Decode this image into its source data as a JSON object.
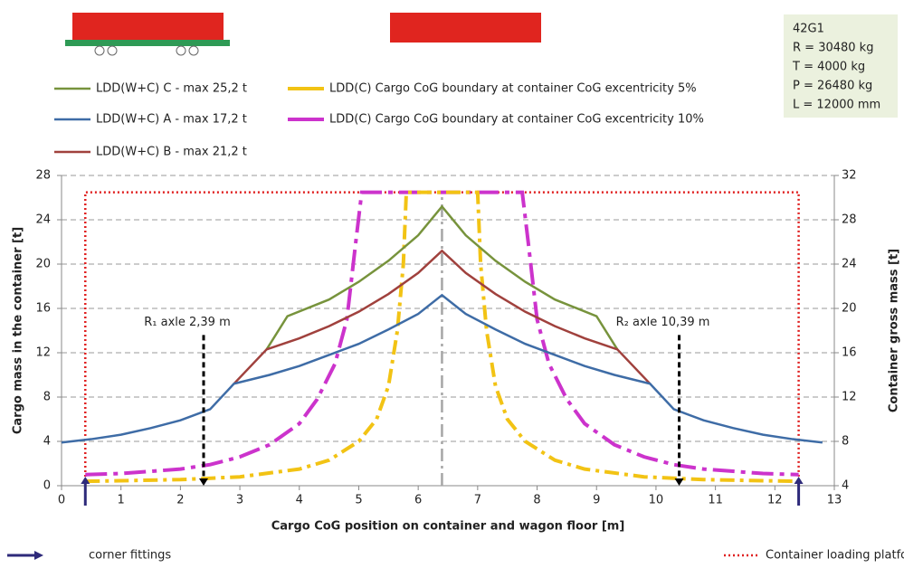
{
  "chart_data": {
    "type": "line",
    "xlabel": "Cargo CoG position on container and wagon floor [m]",
    "ylabel": "Cargo mass in the container  [t]",
    "y2label": "Container gross mass [t]",
    "xlim": [
      0,
      13
    ],
    "xticks": [
      0,
      1,
      2,
      3,
      4,
      5,
      6,
      7,
      8,
      9,
      10,
      11,
      12,
      13
    ],
    "ylim": [
      0,
      28
    ],
    "yticks": [
      0,
      4,
      8,
      12,
      16,
      20,
      24,
      28
    ],
    "y2lim": [
      4,
      32
    ],
    "y2ticks": [
      4,
      8,
      12,
      16,
      20,
      24,
      28,
      32
    ],
    "grid": true,
    "series": [
      {
        "name": "LDD(W+C) C - max 25,2 t",
        "color": "#77933c",
        "style": "solid",
        "x": [
          3.45,
          3.8,
          4.5,
          5,
          5.5,
          6,
          6.4,
          6.8,
          7.3,
          7.8,
          8.3,
          9,
          9.35
        ],
        "values": [
          12.3,
          15.3,
          16.8,
          18.4,
          20.3,
          22.6,
          25.2,
          22.6,
          20.3,
          18.4,
          16.8,
          15.3,
          12.3
        ]
      },
      {
        "name": "LDD(W+C) A - max 17,2 t",
        "color": "#3e6ca6",
        "style": "solid",
        "x": [
          0,
          0.5,
          1,
          1.5,
          2,
          2.5,
          2.9,
          3.5,
          4,
          4.5,
          5,
          5.5,
          6,
          6.4,
          6.8,
          7.3,
          7.8,
          8.3,
          8.8,
          9.3,
          9.9,
          10.3,
          10.8,
          11.3,
          11.8,
          12.3,
          12.8
        ],
        "values": [
          3.9,
          4.2,
          4.6,
          5.2,
          5.9,
          6.9,
          9.2,
          10,
          10.8,
          11.8,
          12.8,
          14.1,
          15.5,
          17.2,
          15.5,
          14.1,
          12.8,
          11.8,
          10.8,
          10,
          9.2,
          6.9,
          5.9,
          5.2,
          4.6,
          4.2,
          3.9
        ]
      },
      {
        "name": "LDD(W+C) B - max 21,2 t",
        "color": "#a0413d",
        "style": "solid",
        "x": [
          2.9,
          3.45,
          4,
          4.5,
          5,
          5.5,
          6,
          6.4,
          6.8,
          7.3,
          7.8,
          8.3,
          8.8,
          9.35,
          9.9
        ],
        "values": [
          9.2,
          12.3,
          13.3,
          14.4,
          15.7,
          17.3,
          19.2,
          21.2,
          19.2,
          17.3,
          15.7,
          14.4,
          13.3,
          12.3,
          9.2
        ]
      },
      {
        "name": "LDD(C) Cargo CoG boundary at container CoG excentricity 5%",
        "color": "#f2c314",
        "style": "dashdot",
        "x": [
          0.4,
          1,
          2,
          3,
          4,
          4.5,
          5,
          5.3,
          5.5,
          5.65,
          5.75,
          5.8,
          7,
          7.05,
          7.15,
          7.3,
          7.5,
          7.8,
          8.3,
          8.8,
          9.8,
          10.8,
          11.8,
          12.4
        ],
        "values": [
          0.4,
          0.45,
          0.55,
          0.8,
          1.5,
          2.3,
          4,
          6,
          9,
          14,
          20,
          26.48,
          26.48,
          20,
          14,
          9,
          6,
          4,
          2.3,
          1.5,
          0.8,
          0.55,
          0.45,
          0.4
        ]
      },
      {
        "name": "LDD(C) Cargo CoG boundary at container CoG excentricity 10%",
        "color": "#cc33cc",
        "style": "longdashdot",
        "x": [
          0.4,
          1,
          2,
          2.5,
          3,
          3.5,
          4,
          4.3,
          4.6,
          4.8,
          4.95,
          5.05,
          7.75,
          7.85,
          8,
          8.2,
          8.5,
          8.8,
          9.3,
          9.8,
          10.3,
          10.8,
          11.8,
          12.4
        ],
        "values": [
          1,
          1.1,
          1.5,
          1.9,
          2.6,
          3.7,
          5.6,
          7.8,
          11,
          15,
          22,
          26.48,
          26.48,
          22,
          15,
          11,
          7.8,
          5.6,
          3.7,
          2.6,
          1.9,
          1.5,
          1.1,
          1
        ]
      },
      {
        "name": "Container loading platform and payload",
        "color": "#e02020",
        "style": "dotted",
        "x": [
          0.4,
          0.4,
          12.4,
          12.4
        ],
        "values": [
          0,
          26.48,
          26.48,
          0
        ]
      },
      {
        "color": "#a6a6a6",
        "style": "centerline",
        "x": [
          6.4,
          6.4
        ],
        "values": [
          0,
          26.48
        ]
      }
    ],
    "annotations": [
      {
        "text": "R₁ axle 2,39 m",
        "x": 2.39,
        "y": 13.6
      },
      {
        "text": "R₂ axle 10,39 m",
        "x": 10.39,
        "y": 13.6
      }
    ],
    "corner_fittings": {
      "label": "corner fittings",
      "x": [
        0.4,
        12.4
      ],
      "color": "#2e2a7a"
    },
    "info": [
      "42G1",
      "R = 30480 kg",
      "T = 4000 kg",
      "P = 26480 kg",
      "L = 12000 mm"
    ]
  }
}
